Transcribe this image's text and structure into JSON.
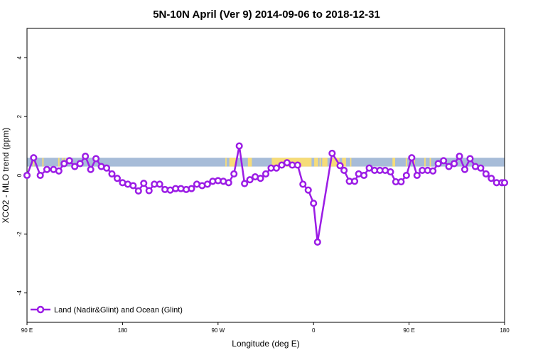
{
  "chart_data": {
    "type": "line",
    "title": "5N-10N April (Ver 9)   2014-09-06 to 2018-12-31",
    "xlabel": "Longitude (deg E)",
    "ylabel": "XCO2 - MLO trend (ppm)",
    "xlim": [
      90,
      450
    ],
    "ylim": [
      -5,
      5
    ],
    "x_ticks": [
      {
        "value": 90,
        "label": "90 E"
      },
      {
        "value": 162,
        "label": "180"
      },
      {
        "value": 234,
        "label": "90 W"
      },
      {
        "value": 306,
        "label": "0"
      },
      {
        "value": 378,
        "label": "90 E"
      },
      {
        "value": 450,
        "label": "180"
      }
    ],
    "y_ticks": [
      -4,
      -2,
      0,
      2,
      4
    ],
    "grid": false,
    "legend_position": "bottom-left",
    "land_strip": {
      "y_range": [
        0.3,
        0.6
      ],
      "ocean_color": "#a7bcd8",
      "land_color": "#f6dc78",
      "land_spans": [
        [
          94.5,
          95.5
        ],
        [
          101.5,
          102.5
        ],
        [
          113.5,
          114.5
        ],
        [
          116.5,
          117.5
        ],
        [
          118.5,
          119.5
        ],
        [
          239.5,
          240.5
        ],
        [
          242.5,
          247.5
        ],
        [
          256.5,
          259.5
        ],
        [
          274.5,
          304.5
        ],
        [
          306.5,
          309.5
        ],
        [
          310.5,
          311.5
        ],
        [
          312.5,
          316.5
        ],
        [
          318.5,
          325.5
        ],
        [
          327.5,
          330.5
        ],
        [
          333.5,
          334.5
        ],
        [
          365.5,
          367.5
        ],
        [
          375.5,
          376.5
        ],
        [
          381.5,
          382.5
        ],
        [
          389.5,
          390.5
        ],
        [
          393.5,
          394.5
        ]
      ]
    },
    "series": [
      {
        "name": "Land (Nadir&Glint) and Ocean (Glint)",
        "color": "#9b1ce5",
        "x": [
          90,
          95,
          100,
          105,
          110,
          114,
          118,
          122,
          126,
          130,
          134,
          138,
          142,
          146,
          150,
          154,
          158,
          162,
          166,
          170,
          174,
          178,
          182,
          186,
          190,
          194,
          198,
          202,
          206,
          210,
          214,
          218,
          222,
          226,
          230,
          234,
          238,
          242,
          246,
          250,
          254,
          258,
          262,
          266,
          270,
          274,
          278,
          282,
          286,
          290,
          294,
          298,
          302,
          306,
          309,
          320,
          326,
          329,
          333,
          337,
          340,
          344,
          348,
          352,
          356,
          360,
          364,
          368,
          372,
          376,
          380,
          384,
          388,
          392,
          396,
          400,
          404,
          408,
          412,
          416,
          420,
          424,
          428,
          432,
          436,
          440,
          444,
          448,
          450
        ],
        "values": [
          0.0,
          0.6,
          0.0,
          0.2,
          0.2,
          0.15,
          0.4,
          0.5,
          0.3,
          0.4,
          0.65,
          0.2,
          0.57,
          0.3,
          0.25,
          0.05,
          -0.1,
          -0.25,
          -0.3,
          -0.35,
          -0.53,
          -0.27,
          -0.52,
          -0.3,
          -0.3,
          -0.48,
          -0.5,
          -0.45,
          -0.45,
          -0.48,
          -0.45,
          -0.3,
          -0.35,
          -0.3,
          -0.2,
          -0.18,
          -0.2,
          -0.25,
          0.05,
          1.0,
          -0.28,
          -0.15,
          -0.05,
          -0.1,
          0.05,
          0.25,
          0.25,
          0.35,
          0.43,
          0.35,
          0.35,
          -0.3,
          -0.5,
          -0.95,
          -2.27,
          0.75,
          0.33,
          0.17,
          -0.2,
          -0.2,
          0.05,
          0.0,
          0.25,
          0.17,
          0.17,
          0.17,
          0.12,
          -0.22,
          -0.22,
          0.0,
          0.6,
          0.0,
          0.17,
          0.17,
          0.15,
          0.4,
          0.5,
          0.3,
          0.4,
          0.65,
          0.2,
          0.57,
          0.3,
          0.25,
          0.05,
          -0.1,
          -0.25,
          -0.25,
          -0.25
        ]
      }
    ]
  }
}
